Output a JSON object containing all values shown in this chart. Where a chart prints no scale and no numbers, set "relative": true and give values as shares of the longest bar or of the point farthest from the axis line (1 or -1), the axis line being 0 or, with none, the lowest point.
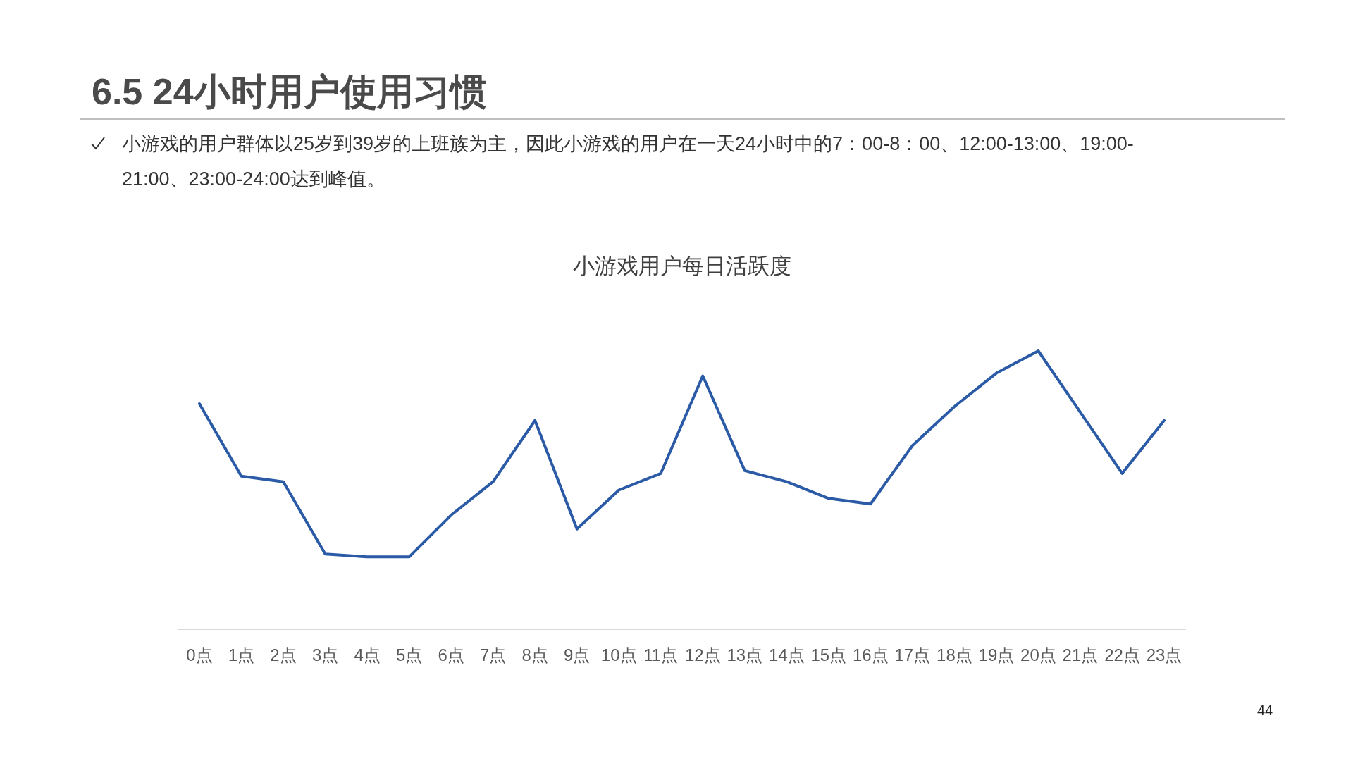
{
  "chart_data": {
    "type": "line",
    "title": "小游戏用户每日活跃度",
    "relative": true,
    "marker": "none",
    "line_style": "solid",
    "categories": [
      "0点",
      "1点",
      "2点",
      "3点",
      "4点",
      "5点",
      "6点",
      "7点",
      "8点",
      "9点",
      "10点",
      "11点",
      "12点",
      "13点",
      "14点",
      "15点",
      "16点",
      "17点",
      "18点",
      "19点",
      "20点",
      "21点",
      "22点",
      "23点"
    ],
    "series": [
      {
        "color": "#2b5aa6",
        "values": [
          0.81,
          0.55,
          0.53,
          0.27,
          0.26,
          0.26,
          0.41,
          0.53,
          0.75,
          0.36,
          0.5,
          0.56,
          0.91,
          0.57,
          0.53,
          0.47,
          0.45,
          0.66,
          0.8,
          0.92,
          1,
          0.78,
          0.56,
          0.75
        ]
      }
    ],
    "annotations": [
      "6.5 24小时用户使用习惯",
      "小游戏的用户群体以25岁到39岁的上班族为主，因此小游戏的用户在一天24小时中的7：00-8：00、12:00-13:00、19:00-21:00、23:00-24:00达到峰值。",
      "44"
    ]
  }
}
